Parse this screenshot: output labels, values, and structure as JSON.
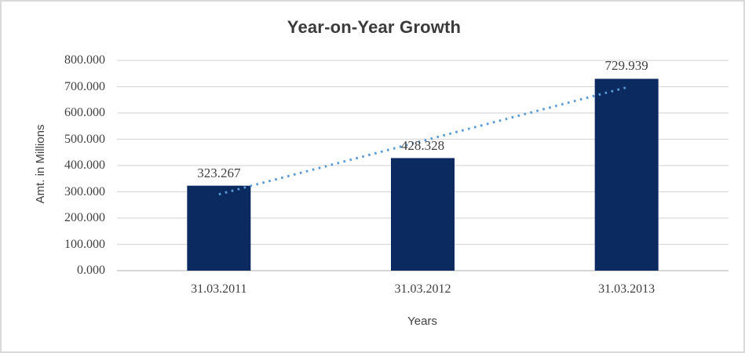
{
  "chart_data": {
    "type": "bar",
    "title": "Year-on-Year Growth",
    "xlabel": "Years",
    "ylabel": "Amt. in Millions",
    "categories": [
      "31.03.2011",
      "31.03.2012",
      "31.03.2013"
    ],
    "values": [
      323.267,
      428.328,
      729.939
    ],
    "value_labels": [
      "323.267",
      "428.328",
      "729.939"
    ],
    "ytick_labels": [
      "800.000",
      "700.000",
      "600.000",
      "500.000",
      "400.000",
      "300.000",
      "200.000",
      "100.000",
      "0.000"
    ],
    "yticks": [
      800,
      700,
      600,
      500,
      400,
      300,
      200,
      100,
      0
    ],
    "ylim": [
      0,
      800
    ],
    "grid": "horizontal",
    "legend": "none",
    "trendline": {
      "type": "linear",
      "style": "dotted"
    },
    "colors": {
      "bar": "#0b2a60",
      "trendline": "#5b9bd5",
      "gridline": "#d9d9d9",
      "axis_line": "#bfbfbf",
      "text": "#404040",
      "frame_border": "#d9d9d9",
      "background": "#ffffff"
    }
  }
}
